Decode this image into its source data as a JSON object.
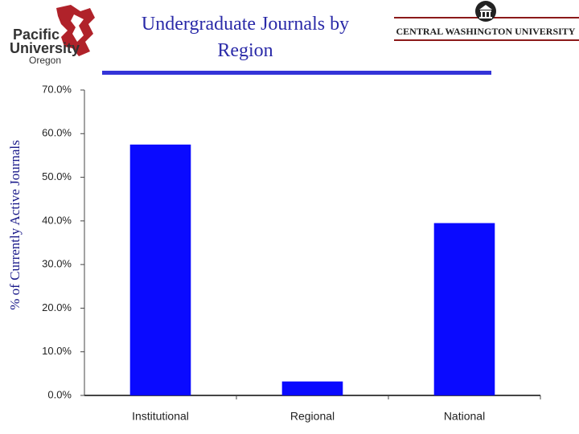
{
  "chart_data": {
    "type": "bar",
    "title": "Undergraduate Journals by Region",
    "y_label": "% of Currently Active Journals",
    "logos": [
      [
        "Pacific",
        "University",
        "Oregon"
      ],
      [
        "CENTRAL WASHINGTON UNIVERSITY"
      ]
    ],
    "categories": [
      "Institutional",
      "Regional",
      "National"
    ],
    "values": [
      57.5,
      3.2,
      39.5
    ],
    "color": "#0a0aff",
    "ylim": [
      0,
      70
    ],
    "yticks": [
      {
        "value": 0,
        "label": "0.0%"
      },
      {
        "value": 10,
        "label": "10.0%"
      },
      {
        "value": 20,
        "label": "20.0%"
      },
      {
        "value": 30,
        "label": "30.0%"
      },
      {
        "value": 40,
        "label": "40.0%"
      },
      {
        "value": 50,
        "label": "50.0%"
      },
      {
        "value": 60,
        "label": "60.0%"
      },
      {
        "value": 70,
        "label": "70.0%"
      }
    ],
    "grid": false
  }
}
